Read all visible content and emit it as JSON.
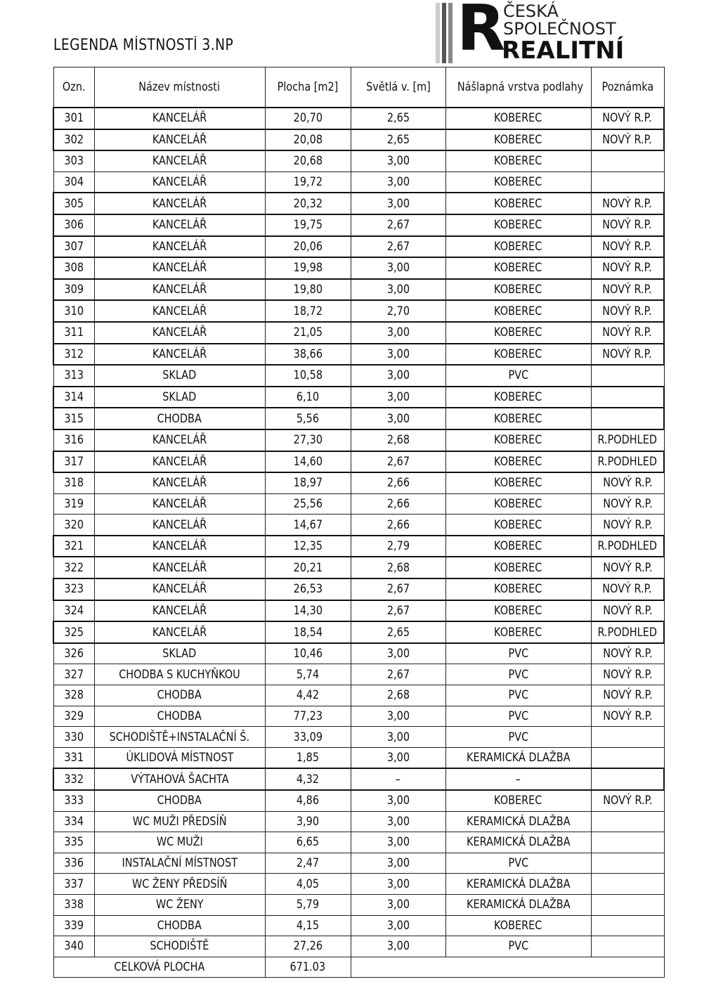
{
  "title": "LEGENDA MÍSTNOSTÍ 3.NP",
  "headers": [
    "Ozn.",
    "Název místnosti",
    "Plocha [m2]",
    "Světlá v. [m]",
    "Nášlapná vrstva podlahy",
    "Poznámka"
  ],
  "rows": [
    [
      "301",
      "KANCELÁŘ",
      "20,70",
      "2,65",
      "KOBEREC",
      "NOVÝ R.P.",
      true
    ],
    [
      "302",
      "KANCELÁŘ",
      "20,08",
      "2,65",
      "KOBEREC",
      "NOVÝ R.P.",
      true
    ],
    [
      "303",
      "KANCELÁŘ",
      "20,68",
      "3,00",
      "KOBEREC",
      "",
      false
    ],
    [
      "304",
      "KANCELÁŘ",
      "19,72",
      "3,00",
      "KOBEREC",
      "",
      false
    ],
    [
      "305",
      "KANCELÁŘ",
      "20,32",
      "3,00",
      "KOBEREC",
      "NOVÝ R.P.",
      true
    ],
    [
      "306",
      "KANCELÁŘ",
      "19,75",
      "2,67",
      "KOBEREC",
      "NOVÝ R.P.",
      true
    ],
    [
      "307",
      "KANCELÁŘ",
      "20,06",
      "2,67",
      "KOBEREC",
      "NOVÝ R.P.",
      true
    ],
    [
      "308",
      "KANCELÁŘ",
      "19,98",
      "3,00",
      "KOBEREC",
      "NOVÝ R.P.",
      true
    ],
    [
      "309",
      "KANCELÁŘ",
      "19,80",
      "3,00",
      "KOBEREC",
      "NOVÝ R.P.",
      true
    ],
    [
      "310",
      "KANCELÁŘ",
      "18,72",
      "2,70",
      "KOBEREC",
      "NOVÝ R.P.",
      true
    ],
    [
      "311",
      "KANCELÁŘ",
      "21,05",
      "3,00",
      "KOBEREC",
      "NOVÝ R.P.",
      true
    ],
    [
      "312",
      "KANCELÁŘ",
      "38,66",
      "3,00",
      "KOBEREC",
      "NOVÝ R.P.",
      true
    ],
    [
      "313",
      "SKLAD",
      "10,58",
      "3,00",
      "PVC",
      "",
      false
    ],
    [
      "314",
      "SKLAD",
      "6,10",
      "3,00",
      "KOBEREC",
      "",
      true
    ],
    [
      "315",
      "CHODBA",
      "5,56",
      "3,00",
      "KOBEREC",
      "",
      true
    ],
    [
      "316",
      "KANCELÁŘ",
      "27,30",
      "2,68",
      "KOBEREC",
      "R.PODHLED",
      false
    ],
    [
      "317",
      "KANCELÁŘ",
      "14,60",
      "2,67",
      "KOBEREC",
      "R.PODHLED",
      true
    ],
    [
      "318",
      "KANCELÁŘ",
      "18,97",
      "2,66",
      "KOBEREC",
      "NOVÝ R.P.",
      false
    ],
    [
      "319",
      "KANCELÁŘ",
      "25,56",
      "2,66",
      "KOBEREC",
      "NOVÝ R.P.",
      false
    ],
    [
      "320",
      "KANCELÁŘ",
      "14,67",
      "2,66",
      "KOBEREC",
      "NOVÝ R.P.",
      false
    ],
    [
      "321",
      "KANCELÁŘ",
      "12,35",
      "2,79",
      "KOBEREC",
      "R.PODHLED",
      true
    ],
    [
      "322",
      "KANCELÁŘ",
      "20,21",
      "2,68",
      "KOBEREC",
      "NOVÝ R.P.",
      false
    ],
    [
      "323",
      "KANCELÁŘ",
      "26,53",
      "2,67",
      "KOBEREC",
      "NOVÝ R.P.",
      true
    ],
    [
      "324",
      "KANCELÁŘ",
      "14,30",
      "2,67",
      "KOBEREC",
      "NOVÝ R.P.",
      false
    ],
    [
      "325",
      "KANCELÁŘ",
      "18,54",
      "2,65",
      "KOBEREC",
      "R.PODHLED",
      true
    ],
    [
      "326",
      "SKLAD",
      "10,46",
      "3,00",
      "PVC",
      "NOVÝ R.P.",
      false
    ],
    [
      "327",
      "CHODBA S KUCHYŇKOU",
      "5,74",
      "2,67",
      "PVC",
      "NOVÝ R.P.",
      false
    ],
    [
      "328",
      "CHODBA",
      "4,42",
      "2,68",
      "PVC",
      "NOVÝ R.P.",
      false
    ],
    [
      "329",
      "CHODBA",
      "77,23",
      "3,00",
      "PVC",
      "NOVÝ R.P.",
      false
    ],
    [
      "330",
      "SCHODIŠTĚ+INSTALAČNÍ Š.",
      "33,09",
      "3,00",
      "PVC",
      "",
      false
    ],
    [
      "331",
      "ÚKLIDOVÁ MÍSTNOST",
      "1,85",
      "3,00",
      "KERAMICKÁ DLAŽBA",
      "",
      false
    ],
    [
      "332",
      "VÝTAHOVÁ ŠACHTA",
      "4,32",
      "–",
      "–",
      "",
      true
    ],
    [
      "333",
      "CHODBA",
      "4,86",
      "3,00",
      "KOBEREC",
      "NOVÝ R.P.",
      false
    ],
    [
      "334",
      "WC MUŽI PŘEDSÍŇ",
      "3,90",
      "3,00",
      "KERAMICKÁ DLAŽBA",
      "",
      false
    ],
    [
      "335",
      "WC MUŽI",
      "6,65",
      "3,00",
      "KERAMICKÁ DLAŽBA",
      "",
      false
    ],
    [
      "336",
      "INSTALAČNÍ MÍSTNOST",
      "2,47",
      "3,00",
      "PVC",
      "",
      false
    ],
    [
      "337",
      "WC ŽENY PŘEDSÍŇ",
      "4,05",
      "3,00",
      "KERAMICKÁ DLAŽBA",
      "",
      false
    ],
    [
      "338",
      "WC ŽENY",
      "5,79",
      "3,00",
      "KERAMICKÁ DLAŽBA",
      "",
      false
    ],
    [
      "339",
      "CHODBA",
      "4,15",
      "3,00",
      "KOBEREC",
      "",
      false
    ],
    [
      "340",
      "SCHODIŠTĚ",
      "27,26",
      "3,00",
      "PVC",
      "",
      false
    ]
  ],
  "total": {
    "label": "CELKOVÁ PLOCHA",
    "value": "671.03"
  },
  "logo": {
    "line1": "ČESKÁ",
    "line2": "SPOLEČNOST",
    "line3": "REALITNÍ",
    "letter": "R"
  }
}
